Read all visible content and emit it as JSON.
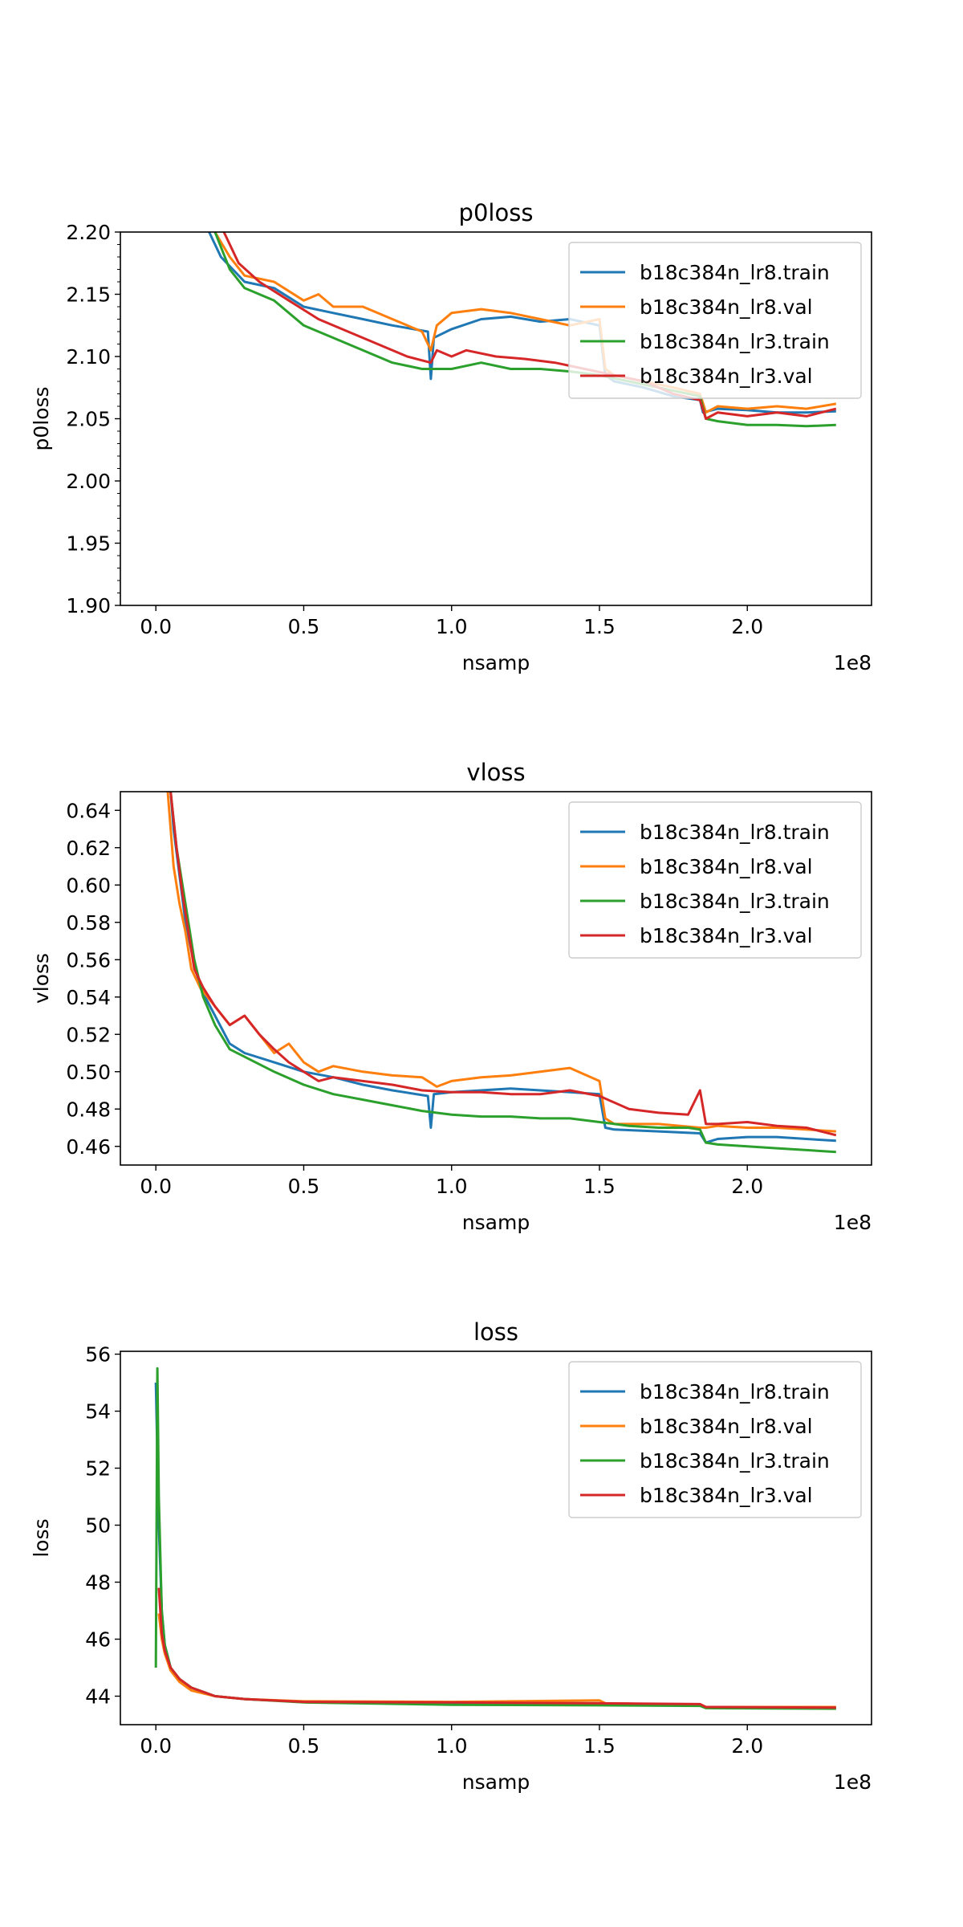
{
  "figure": {
    "colors": {
      "c0": "#1f77b4",
      "c1": "#ff7f0e",
      "c2": "#2ca02c",
      "c3": "#d62728"
    }
  },
  "chart_data": [
    {
      "type": "line",
      "title": "p0loss",
      "xlabel": "nsamp",
      "ylabel": "p0loss",
      "x_offset_text": "1e8",
      "xlim": [
        -0.12,
        2.42
      ],
      "ylim": [
        1.9,
        2.2
      ],
      "xticks": [
        0.0,
        0.5,
        1.0,
        1.5,
        2.0
      ],
      "xtick_labels": [
        "0.0",
        "0.5",
        "1.0",
        "1.5",
        "2.0"
      ],
      "yticks": [
        1.9,
        1.95,
        2.0,
        2.05,
        2.1,
        2.15,
        2.2
      ],
      "ytick_labels": [
        "1.90",
        "1.95",
        "2.00",
        "2.05",
        "2.10",
        "2.15",
        "2.20"
      ],
      "minor_yticks": true,
      "legend_loc": "upper right",
      "series": [
        {
          "name": "b18c384n_lr8.train",
          "color": "#1f77b4",
          "x": [
            0.18,
            0.22,
            0.3,
            0.4,
            0.5,
            0.6,
            0.7,
            0.8,
            0.92,
            0.93,
            0.94,
            1.0,
            1.1,
            1.2,
            1.3,
            1.4,
            1.5,
            1.52,
            1.55,
            1.65,
            1.75,
            1.84,
            1.85,
            1.9,
            2.0,
            2.1,
            2.2,
            2.3
          ],
          "y": [
            2.2,
            2.18,
            2.16,
            2.155,
            2.14,
            2.135,
            2.13,
            2.125,
            2.12,
            2.082,
            2.115,
            2.122,
            2.13,
            2.132,
            2.128,
            2.13,
            2.125,
            2.085,
            2.08,
            2.075,
            2.068,
            2.065,
            2.055,
            2.058,
            2.057,
            2.055,
            2.055,
            2.056
          ]
        },
        {
          "name": "b18c384n_lr8.val",
          "color": "#ff7f0e",
          "x": [
            0.2,
            0.25,
            0.3,
            0.4,
            0.5,
            0.55,
            0.6,
            0.7,
            0.8,
            0.9,
            0.93,
            0.95,
            1.0,
            1.1,
            1.2,
            1.3,
            1.4,
            1.5,
            1.52,
            1.55,
            1.65,
            1.75,
            1.84,
            1.86,
            1.9,
            2.0,
            2.1,
            2.2,
            2.3
          ],
          "y": [
            2.2,
            2.18,
            2.165,
            2.16,
            2.145,
            2.15,
            2.14,
            2.14,
            2.13,
            2.12,
            2.105,
            2.125,
            2.135,
            2.138,
            2.135,
            2.13,
            2.125,
            2.13,
            2.09,
            2.085,
            2.08,
            2.075,
            2.07,
            2.055,
            2.06,
            2.058,
            2.06,
            2.058,
            2.062
          ]
        },
        {
          "name": "b18c384n_lr3.train",
          "color": "#2ca02c",
          "x": [
            0.2,
            0.25,
            0.3,
            0.4,
            0.5,
            0.6,
            0.7,
            0.8,
            0.9,
            1.0,
            1.1,
            1.2,
            1.3,
            1.4,
            1.5,
            1.6,
            1.7,
            1.8,
            1.84,
            1.86,
            1.9,
            2.0,
            2.1,
            2.2,
            2.3
          ],
          "y": [
            2.2,
            2.17,
            2.155,
            2.145,
            2.125,
            2.115,
            2.105,
            2.095,
            2.09,
            2.09,
            2.095,
            2.09,
            2.09,
            2.088,
            2.085,
            2.08,
            2.075,
            2.07,
            2.068,
            2.05,
            2.048,
            2.045,
            2.045,
            2.044,
            2.045
          ]
        },
        {
          "name": "b18c384n_lr3.val",
          "color": "#d62728",
          "x": [
            0.23,
            0.28,
            0.35,
            0.45,
            0.55,
            0.65,
            0.75,
            0.85,
            0.93,
            0.95,
            1.0,
            1.05,
            1.15,
            1.25,
            1.35,
            1.45,
            1.55,
            1.65,
            1.75,
            1.84,
            1.86,
            1.9,
            2.0,
            2.1,
            2.2,
            2.3
          ],
          "y": [
            2.2,
            2.175,
            2.16,
            2.145,
            2.13,
            2.12,
            2.11,
            2.1,
            2.095,
            2.105,
            2.1,
            2.105,
            2.1,
            2.098,
            2.095,
            2.09,
            2.085,
            2.08,
            2.07,
            2.065,
            2.05,
            2.055,
            2.052,
            2.055,
            2.052,
            2.058
          ]
        }
      ]
    },
    {
      "type": "line",
      "title": "vloss",
      "xlabel": "nsamp",
      "ylabel": "vloss",
      "x_offset_text": "1e8",
      "xlim": [
        -0.12,
        2.42
      ],
      "ylim": [
        0.45,
        0.65
      ],
      "xticks": [
        0.0,
        0.5,
        1.0,
        1.5,
        2.0
      ],
      "xtick_labels": [
        "0.0",
        "0.5",
        "1.0",
        "1.5",
        "2.0"
      ],
      "yticks": [
        0.46,
        0.48,
        0.5,
        0.52,
        0.54,
        0.56,
        0.58,
        0.6,
        0.62,
        0.64
      ],
      "ytick_labels": [
        "0.46",
        "0.48",
        "0.50",
        "0.52",
        "0.54",
        "0.56",
        "0.58",
        "0.60",
        "0.62",
        "0.64"
      ],
      "minor_yticks": false,
      "legend_loc": "upper right",
      "series": [
        {
          "name": "b18c384n_lr8.train",
          "color": "#1f77b4",
          "x": [
            0.05,
            0.06,
            0.08,
            0.1,
            0.12,
            0.15,
            0.2,
            0.25,
            0.3,
            0.4,
            0.5,
            0.6,
            0.7,
            0.8,
            0.92,
            0.93,
            0.94,
            1.0,
            1.1,
            1.2,
            1.3,
            1.4,
            1.5,
            1.52,
            1.55,
            1.7,
            1.84,
            1.86,
            1.9,
            2.0,
            2.1,
            2.2,
            2.3
          ],
          "y": [
            0.65,
            0.63,
            0.605,
            0.58,
            0.565,
            0.545,
            0.53,
            0.515,
            0.51,
            0.505,
            0.5,
            0.497,
            0.493,
            0.49,
            0.487,
            0.47,
            0.488,
            0.489,
            0.49,
            0.491,
            0.49,
            0.489,
            0.488,
            0.47,
            0.469,
            0.468,
            0.467,
            0.462,
            0.464,
            0.465,
            0.465,
            0.464,
            0.463
          ]
        },
        {
          "name": "b18c384n_lr8.val",
          "color": "#ff7f0e",
          "x": [
            0.04,
            0.06,
            0.08,
            0.1,
            0.12,
            0.15,
            0.2,
            0.25,
            0.3,
            0.35,
            0.4,
            0.45,
            0.5,
            0.55,
            0.6,
            0.7,
            0.8,
            0.9,
            0.95,
            1.0,
            1.1,
            1.2,
            1.3,
            1.4,
            1.5,
            1.52,
            1.55,
            1.7,
            1.84,
            1.86,
            1.9,
            2.0,
            2.1,
            2.2,
            2.3
          ],
          "y": [
            0.65,
            0.61,
            0.59,
            0.575,
            0.555,
            0.545,
            0.535,
            0.525,
            0.53,
            0.52,
            0.51,
            0.515,
            0.505,
            0.5,
            0.503,
            0.5,
            0.498,
            0.497,
            0.492,
            0.495,
            0.497,
            0.498,
            0.5,
            0.502,
            0.495,
            0.475,
            0.472,
            0.472,
            0.47,
            0.47,
            0.471,
            0.47,
            0.47,
            0.469,
            0.468
          ]
        },
        {
          "name": "b18c384n_lr3.train",
          "color": "#2ca02c",
          "x": [
            0.05,
            0.07,
            0.09,
            0.11,
            0.13,
            0.16,
            0.2,
            0.25,
            0.3,
            0.4,
            0.5,
            0.6,
            0.7,
            0.8,
            0.9,
            1.0,
            1.1,
            1.2,
            1.3,
            1.4,
            1.5,
            1.6,
            1.7,
            1.8,
            1.84,
            1.86,
            1.9,
            2.0,
            2.1,
            2.2,
            2.3
          ],
          "y": [
            0.65,
            0.62,
            0.6,
            0.58,
            0.56,
            0.54,
            0.525,
            0.512,
            0.508,
            0.5,
            0.493,
            0.488,
            0.485,
            0.482,
            0.479,
            0.477,
            0.476,
            0.476,
            0.475,
            0.475,
            0.473,
            0.471,
            0.47,
            0.47,
            0.469,
            0.462,
            0.461,
            0.46,
            0.459,
            0.458,
            0.457
          ]
        },
        {
          "name": "b18c384n_lr3.val",
          "color": "#d62728",
          "x": [
            0.05,
            0.07,
            0.09,
            0.11,
            0.13,
            0.16,
            0.2,
            0.25,
            0.3,
            0.35,
            0.4,
            0.45,
            0.5,
            0.55,
            0.6,
            0.7,
            0.8,
            0.9,
            1.0,
            1.1,
            1.2,
            1.3,
            1.4,
            1.5,
            1.6,
            1.7,
            1.8,
            1.84,
            1.86,
            1.9,
            2.0,
            2.1,
            2.2,
            2.3
          ],
          "y": [
            0.65,
            0.62,
            0.595,
            0.575,
            0.555,
            0.545,
            0.535,
            0.525,
            0.53,
            0.52,
            0.512,
            0.505,
            0.5,
            0.495,
            0.497,
            0.495,
            0.493,
            0.49,
            0.489,
            0.489,
            0.488,
            0.488,
            0.49,
            0.487,
            0.48,
            0.478,
            0.477,
            0.49,
            0.472,
            0.472,
            0.473,
            0.471,
            0.47,
            0.466
          ]
        }
      ]
    },
    {
      "type": "line",
      "title": "loss",
      "xlabel": "nsamp",
      "ylabel": "loss",
      "x_offset_text": "1e8",
      "xlim": [
        -0.12,
        2.42
      ],
      "ylim": [
        43.0,
        56.1
      ],
      "xticks": [
        0.0,
        0.5,
        1.0,
        1.5,
        2.0
      ],
      "xtick_labels": [
        "0.0",
        "0.5",
        "1.0",
        "1.5",
        "2.0"
      ],
      "yticks": [
        44,
        46,
        48,
        50,
        52,
        54,
        56
      ],
      "ytick_labels": [
        "44",
        "46",
        "48",
        "50",
        "52",
        "54",
        "56"
      ],
      "minor_yticks": false,
      "legend_loc": "upper right",
      "series": [
        {
          "name": "b18c384n_lr8.train",
          "color": "#1f77b4",
          "x": [
            0.0,
            0.01,
            0.02,
            0.03,
            0.05,
            0.08,
            0.12,
            0.2,
            0.3,
            0.5,
            1.0,
            1.5,
            1.84,
            1.86,
            2.3
          ],
          "y": [
            55.0,
            50.0,
            47.0,
            45.8,
            45.0,
            44.6,
            44.3,
            44.0,
            43.9,
            43.8,
            43.75,
            43.75,
            43.7,
            43.6,
            43.6
          ]
        },
        {
          "name": "b18c384n_lr8.val",
          "color": "#ff7f0e",
          "x": [
            0.01,
            0.02,
            0.03,
            0.05,
            0.08,
            0.12,
            0.2,
            0.3,
            0.5,
            1.0,
            1.5,
            1.52,
            1.84,
            1.86,
            2.3
          ],
          "y": [
            46.9,
            46.0,
            45.5,
            44.9,
            44.5,
            44.2,
            44.0,
            43.9,
            43.82,
            43.8,
            43.85,
            43.75,
            43.7,
            43.62,
            43.62
          ]
        },
        {
          "name": "b18c384n_lr3.train",
          "color": "#2ca02c",
          "x": [
            0.0,
            0.005,
            0.01,
            0.02,
            0.03,
            0.05,
            0.08,
            0.12,
            0.2,
            0.3,
            0.5,
            1.0,
            1.5,
            1.84,
            1.86,
            2.3
          ],
          "y": [
            45.0,
            55.5,
            51.0,
            47.0,
            45.8,
            45.0,
            44.6,
            44.3,
            44.0,
            43.9,
            43.78,
            43.7,
            43.68,
            43.66,
            43.58,
            43.56
          ]
        },
        {
          "name": "b18c384n_lr3.val",
          "color": "#d62728",
          "x": [
            0.01,
            0.02,
            0.03,
            0.05,
            0.08,
            0.12,
            0.2,
            0.3,
            0.5,
            1.0,
            1.5,
            1.84,
            1.86,
            2.3
          ],
          "y": [
            47.8,
            46.2,
            45.6,
            45.0,
            44.6,
            44.3,
            44.0,
            43.9,
            43.8,
            43.78,
            43.75,
            43.72,
            43.62,
            43.6
          ]
        }
      ]
    }
  ]
}
